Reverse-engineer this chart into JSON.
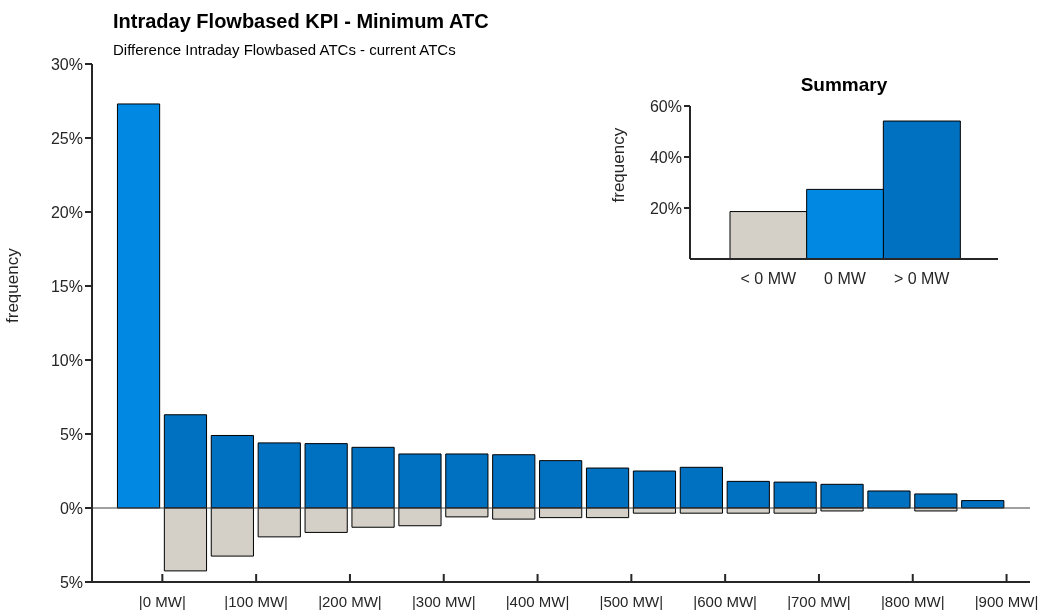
{
  "chart_data": [
    {
      "type": "bar",
      "title": "Intraday Flowbased KPI - Minimum ATC",
      "subtitle": "Difference Intraday Flowbased ATCs - current ATCs",
      "ylabel": "frequency",
      "x": [
        -25,
        25,
        75,
        125,
        175,
        225,
        275,
        325,
        375,
        425,
        475,
        525,
        575,
        625,
        675,
        725,
        775,
        825,
        875
      ],
      "series": [
        {
          "colors": [
            "#0088e3",
            "#0070c0",
            "#0070c0",
            "#0070c0",
            "#0070c0",
            "#0070c0",
            "#0070c0",
            "#0070c0",
            "#0070c0",
            "#0070c0",
            "#0070c0",
            "#0070c0",
            "#0070c0",
            "#0070c0",
            "#0070c0",
            "#0070c0",
            "#0070c0",
            "#0070c0",
            "#0070c0"
          ],
          "values": [
            27.3,
            6.3,
            4.9,
            4.4,
            4.35,
            4.1,
            3.65,
            3.65,
            3.6,
            3.2,
            2.7,
            2.5,
            2.75,
            1.8,
            1.75,
            1.6,
            1.15,
            0.95,
            0.5
          ]
        },
        {
          "color": "#d4d0c8",
          "values": [
            null,
            -4.25,
            -3.25,
            -1.95,
            -1.65,
            -1.3,
            -1.2,
            -0.6,
            -0.75,
            -0.65,
            -0.65,
            -0.35,
            -0.35,
            -0.35,
            -0.35,
            -0.2,
            null,
            -0.2,
            null
          ]
        }
      ],
      "stacked": true,
      "xlim": [
        -75,
        925
      ],
      "xticks": [
        {
          "value": 0,
          "label": "|0 MW|"
        },
        {
          "value": 100,
          "label": "|100 MW|"
        },
        {
          "value": 200,
          "label": "|200 MW|"
        },
        {
          "value": 300,
          "label": "|300 MW|"
        },
        {
          "value": 400,
          "label": "|400 MW|"
        },
        {
          "value": 500,
          "label": "|500 MW|"
        },
        {
          "value": 600,
          "label": "|600 MW|"
        },
        {
          "value": 700,
          "label": "|700 MW|"
        },
        {
          "value": 800,
          "label": "|800 MW|"
        },
        {
          "value": 900,
          "label": "|900 MW|"
        }
      ],
      "ylim": [
        -5,
        30
      ],
      "yticks": [
        {
          "value": -5,
          "label": "5%"
        },
        {
          "value": 0,
          "label": "0%"
        },
        {
          "value": 5,
          "label": "5%"
        },
        {
          "value": 10,
          "label": "10%"
        },
        {
          "value": 15,
          "label": "15%"
        },
        {
          "value": 20,
          "label": "20%"
        },
        {
          "value": 25,
          "label": "25%"
        },
        {
          "value": 30,
          "label": "30%"
        }
      ],
      "ref_lines": [
        {
          "axis": "y",
          "value": 0,
          "color": "#404040"
        }
      ],
      "grid": false,
      "legend": false
    },
    {
      "type": "bar",
      "title": "Summary",
      "ylabel": "frequency",
      "categories": [
        "< 0 MW",
        "0 MW",
        "> 0 MW"
      ],
      "values": [
        18.6,
        27.3,
        54.1
      ],
      "colors": [
        "#d4d0c8",
        "#0088e3",
        "#0070c0"
      ],
      "ylim": [
        0,
        60
      ],
      "yticks": [
        {
          "value": 20,
          "label": "20%"
        },
        {
          "value": 40,
          "label": "40%"
        },
        {
          "value": 60,
          "label": "60%"
        }
      ],
      "grid": false,
      "legend": false
    }
  ]
}
